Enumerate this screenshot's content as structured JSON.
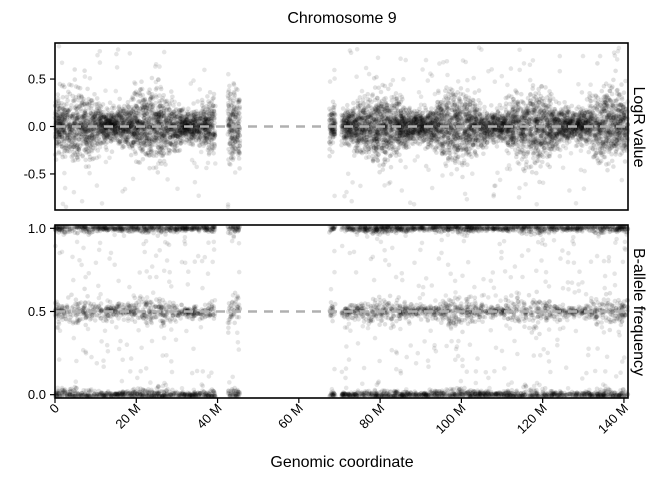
{
  "chart_data": {
    "type": "scatter",
    "title": "Chromosome 9",
    "xlabel": "Genomic coordinate",
    "xlim": [
      0,
      141000000
    ],
    "x_ticks": [
      {
        "value": 0,
        "label": "0"
      },
      {
        "value": 20000000,
        "label": "20 M"
      },
      {
        "value": 40000000,
        "label": "40 M"
      },
      {
        "value": 60000000,
        "label": "60 M"
      },
      {
        "value": 80000000,
        "label": "80 M"
      },
      {
        "value": 100000000,
        "label": "100 M"
      },
      {
        "value": 120000000,
        "label": "120 M"
      },
      {
        "value": 140000000,
        "label": "140 M"
      }
    ],
    "point_color": "#000000",
    "reference_line_color": "#b0b0b0",
    "panels": [
      {
        "id": "logr",
        "ylabel": "LogR value",
        "ylim": [
          -0.88,
          0.88
        ],
        "y_ticks": [
          {
            "value": 0.5,
            "label": "0.5"
          },
          {
            "value": 0.0,
            "label": "0.0"
          },
          {
            "value": -0.5,
            "label": "-0.5"
          }
        ],
        "reference_line": 0.0,
        "data_segments_mb": [
          [
            0,
            39.5
          ],
          [
            42.5,
            45.5
          ],
          [
            67.5,
            69
          ],
          [
            70.5,
            141
          ]
        ],
        "bands": [
          {
            "center": 0.0,
            "spread": 0.13
          }
        ],
        "outlier_range": [
          -0.85,
          0.85
        ]
      },
      {
        "id": "baf",
        "ylabel": "B-allele frequency",
        "ylim": [
          -0.02,
          1.02
        ],
        "y_ticks": [
          {
            "value": 1.0,
            "label": "1.0"
          },
          {
            "value": 0.5,
            "label": "0.5"
          },
          {
            "value": 0.0,
            "label": "0.0"
          }
        ],
        "reference_line": 0.5,
        "data_segments_mb": [
          [
            0,
            39.5
          ],
          [
            42.5,
            45.5
          ],
          [
            67.5,
            69
          ],
          [
            70.5,
            141
          ]
        ],
        "bands": [
          {
            "center": 1.0,
            "spread": 0.012
          },
          {
            "center": 0.5,
            "spread": 0.03
          },
          {
            "center": 0.0,
            "spread": 0.012
          }
        ],
        "outlier_range": [
          0.0,
          1.0
        ]
      }
    ]
  }
}
